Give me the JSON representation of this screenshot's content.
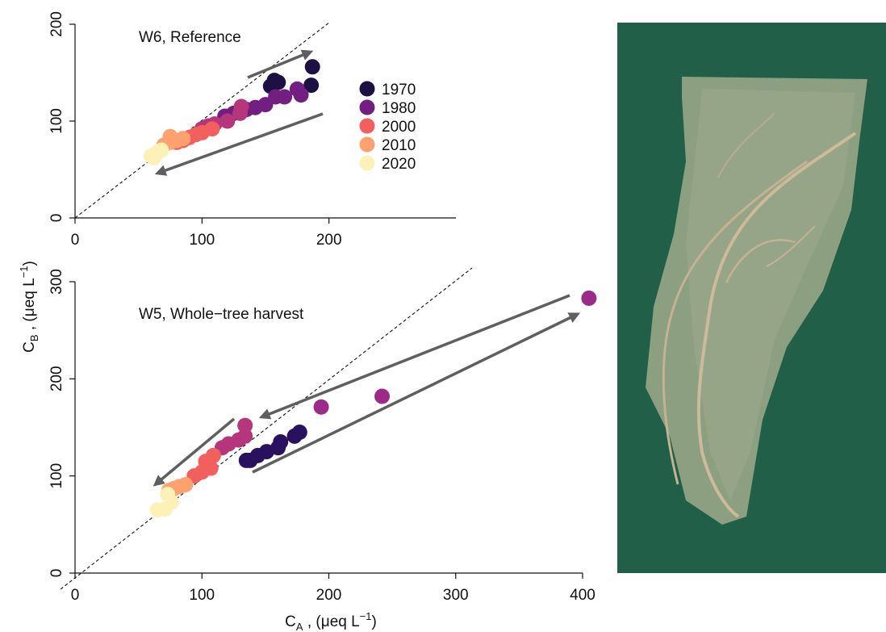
{
  "shared": {
    "ylabel": [
      "C",
      "B",
      " , (μeq L",
      "−1",
      ")"
    ],
    "xlabel": [
      "C",
      "A",
      " , (μeq L",
      "−1",
      ")"
    ]
  },
  "chart_data": [
    {
      "type": "scatter",
      "title": "W6, Reference",
      "xlim": [
        0,
        300
      ],
      "ylim": [
        0,
        200
      ],
      "xticks": [
        0,
        100,
        200
      ],
      "yticks": [
        0,
        100,
        200
      ],
      "legend": true,
      "series": [
        {
          "name": "1970",
          "color": "#1c1044",
          "x": [
            157,
            160,
            154,
            187,
            186
          ],
          "y": [
            142,
            140,
            136,
            156,
            137
          ]
        },
        {
          "name": "1980",
          "color": "#721f81",
          "x": [
            175,
            178,
            165,
            158,
            150,
            142,
            135,
            125,
            118
          ],
          "y": [
            133,
            127,
            125,
            125,
            117,
            114,
            112,
            108,
            105
          ]
        },
        {
          "color": "#b5367a",
          "x": [
            131,
            130,
            120,
            110,
            105,
            100
          ],
          "y": [
            115,
            108,
            100,
            97,
            95,
            92
          ]
        },
        {
          "name": "2000",
          "color": "#f1605d",
          "x": [
            108,
            100,
            95,
            90,
            85,
            80
          ],
          "y": [
            92,
            88,
            86,
            83,
            80,
            78
          ]
        },
        {
          "name": "2010",
          "color": "#fea16e",
          "x": [
            75,
            80,
            75,
            70,
            85
          ],
          "y": [
            84,
            80,
            78,
            75,
            82
          ]
        },
        {
          "name": "2020",
          "color": "#fcf1b6",
          "x": [
            62,
            65,
            60,
            68
          ],
          "y": [
            62,
            68,
            64,
            70
          ]
        }
      ]
    },
    {
      "type": "scatter",
      "title": "W5, Whole−tree harvest",
      "xlim": [
        0,
        400
      ],
      "ylim": [
        0,
        300
      ],
      "xticks": [
        0,
        100,
        200,
        300,
        400
      ],
      "yticks": [
        0,
        100,
        200,
        300
      ],
      "legend": false,
      "series": [
        {
          "color": "#2a1160",
          "x": [
            177,
            173,
            162,
            160,
            151,
            144,
            138,
            135
          ],
          "y": [
            145,
            141,
            135,
            129,
            125,
            121,
            116,
            116
          ]
        },
        {
          "color": "#9b2a8a",
          "x": [
            405,
            194,
            242
          ],
          "y": [
            283,
            171,
            182
          ]
        },
        {
          "color": "#b5367a",
          "x": [
            134,
            134,
            129,
            121,
            116
          ],
          "y": [
            152,
            141,
            137,
            133,
            129
          ]
        },
        {
          "color": "#f1605d",
          "x": [
            109,
            103,
            107,
            100,
            94
          ],
          "y": [
            121,
            115,
            108,
            104,
            100
          ]
        },
        {
          "color": "#fea16e",
          "x": [
            87,
            82,
            78,
            74
          ],
          "y": [
            91,
            89,
            87,
            85
          ]
        },
        {
          "color": "#fcf1b6",
          "x": [
            65,
            76,
            71,
            73
          ],
          "y": [
            65,
            73,
            66,
            81
          ]
        }
      ]
    }
  ]
}
